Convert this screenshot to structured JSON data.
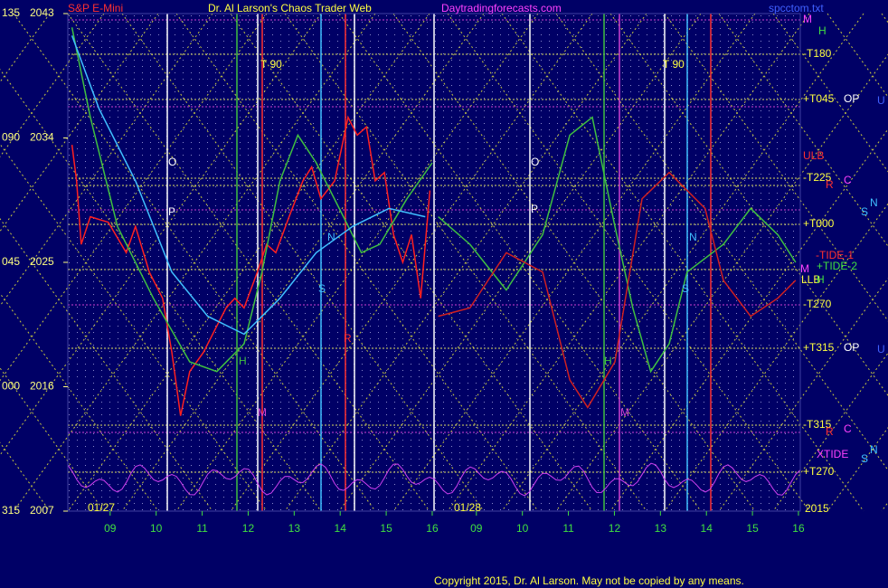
{
  "header": {
    "symbol": "S&P E-Mini",
    "title": "Dr. Al Larson's Chaos Trader Web",
    "site": "Daytradingforecasts.com",
    "file": "spcctom.txt"
  },
  "left_labels": [
    "135",
    "090",
    "045",
    "000",
    "315"
  ],
  "chart_data": [
    {
      "type": "line",
      "date": "01/27",
      "xlim": [
        8.08,
        16.04
      ],
      "xticks": [
        {
          "value": 9,
          "label": "09"
        },
        10,
        11,
        12,
        13,
        14,
        15,
        16
      ],
      "ylim": [
        2007,
        2043
      ],
      "yticks": [
        2043,
        2034,
        2025,
        2016,
        2007
      ],
      "series": [
        {
          "color": "#ff2020",
          "x": [
            8.17,
            8.27,
            8.37,
            8.57,
            8.96,
            9.35,
            9.55,
            9.85,
            10.14,
            10.34,
            10.53,
            10.73,
            11.03,
            11.32,
            11.52,
            11.71,
            11.91,
            12.2,
            12.4,
            12.6,
            12.89,
            13.19,
            13.38,
            13.58,
            13.88,
            14.17,
            14.37,
            14.57,
            14.76,
            14.96,
            15.16,
            15.36,
            15.55,
            15.75,
            15.95
          ],
          "values": [
            2033.5,
            2030.9,
            2026.3,
            2028.3,
            2027.9,
            2025.7,
            2027.6,
            2024.3,
            2022.4,
            2018.5,
            2013.9,
            2017.1,
            2018.5,
            2020.4,
            2021.7,
            2022.4,
            2021.7,
            2024.3,
            2026.3,
            2025.7,
            2028.3,
            2030.9,
            2031.9,
            2029.6,
            2030.9,
            2035.5,
            2034.2,
            2034.8,
            2030.9,
            2031.5,
            2027.0,
            2025.0,
            2027.0,
            2022.4,
            2030.2
          ]
        },
        {
          "color": "#40c040",
          "x": [
            8.17,
            8.57,
            9.16,
            9.94,
            10.73,
            11.32,
            11.91,
            12.3,
            12.69,
            13.08,
            13.48,
            14.07,
            14.46,
            14.86,
            15.45,
            16.0
          ],
          "values": [
            2042.0,
            2035.5,
            2027.6,
            2022.4,
            2017.8,
            2017.1,
            2019.1,
            2024.3,
            2030.9,
            2034.2,
            2032.2,
            2028.3,
            2025.7,
            2026.3,
            2029.6,
            2032.2
          ]
        },
        {
          "color": "#40c0ff",
          "x": [
            8.17,
            8.76,
            9.55,
            10.34,
            11.12,
            11.91,
            12.69,
            13.48,
            14.27,
            15.06,
            15.85
          ],
          "values": [
            2041.4,
            2036.1,
            2030.9,
            2024.3,
            2021.1,
            2019.8,
            2022.4,
            2025.7,
            2027.6,
            2028.9,
            2028.3
          ]
        }
      ]
    },
    {
      "type": "line",
      "date": "01/28",
      "xlim": [
        8.08,
        16.04
      ],
      "xticks": [
        {
          "value": 9,
          "label": "09"
        },
        10,
        11,
        12,
        13,
        14,
        15,
        16
      ],
      "ylim": [
        2007,
        2043
      ],
      "series": [
        {
          "color": "#40c040",
          "x": [
            8.17,
            8.86,
            9.65,
            10.44,
            11.03,
            11.52,
            12.01,
            12.4,
            12.79,
            13.19,
            13.58,
            14.37,
            14.96,
            15.55,
            15.94
          ],
          "values": [
            2028.3,
            2026.3,
            2023.0,
            2027.0,
            2034.2,
            2035.5,
            2027.6,
            2021.7,
            2017.1,
            2019.1,
            2024.3,
            2026.3,
            2028.9,
            2027.0,
            2025.0
          ]
        },
        {
          "color": "#d02020",
          "x": [
            8.17,
            8.86,
            9.65,
            10.44,
            11.03,
            11.42,
            12.01,
            12.6,
            13.19,
            13.97,
            14.37,
            14.96,
            15.55,
            15.94
          ],
          "values": [
            2021.1,
            2021.7,
            2025.7,
            2024.3,
            2016.5,
            2014.5,
            2017.8,
            2029.6,
            2031.5,
            2028.9,
            2023.7,
            2021.1,
            2022.4,
            2023.7
          ]
        }
      ]
    }
  ],
  "annotations": [
    "T 90",
    "T 90",
    "O",
    "P",
    "O",
    "P",
    "N",
    "N",
    "S",
    "S",
    "R",
    "H",
    "H",
    "M",
    "M"
  ],
  "right_labels": [
    "M",
    "H",
    "-T180",
    "+T045",
    "OP",
    "U",
    "ULB",
    "-T225",
    "R",
    "C",
    "S",
    "N",
    "+T000",
    "-TIDE-1",
    "M",
    "+TIDE-2",
    "LLB",
    "H",
    "-T270",
    "+T315",
    "OP",
    "U",
    "-T315",
    "R",
    "C",
    "XTIDE",
    "S",
    "N",
    "+T270",
    "2015"
  ],
  "copyright": "Copyright 2015, Dr. Al Larson. May not be copied by any means."
}
